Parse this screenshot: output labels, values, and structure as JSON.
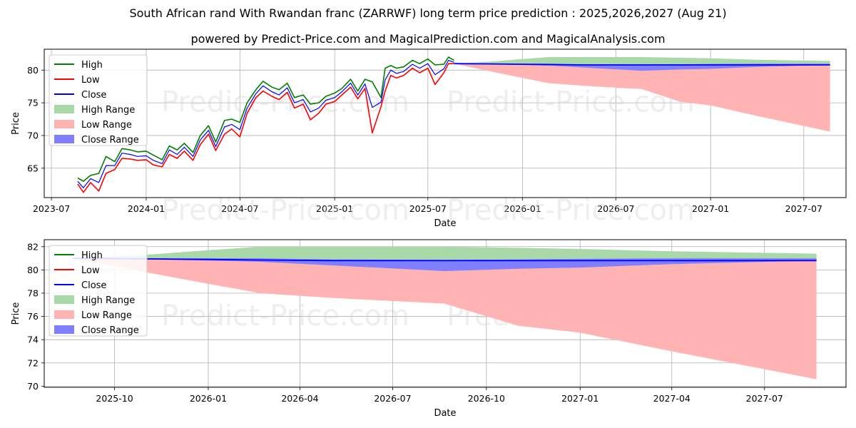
{
  "title": "South African rand With Rwandan franc (ZARRWF) long term price prediction : 2025,2026,2027 (Aug 21)",
  "subtitle": "powered by Predict-Price.com and MagicalPrediction.com and MagicalAnalysis.com",
  "watermark": "Predict-Price.com",
  "colors": {
    "high": "#008000",
    "low": "#ff0000",
    "close": "#0000ff",
    "high_range": "#a9d8a9",
    "low_range": "#ffb3b3",
    "close_range": "#7f7fff",
    "grid": "#b0b0b0"
  },
  "chart_data": [
    {
      "type": "line",
      "panel": "history-and-forecast",
      "xlabel": "Date",
      "ylabel": "Price",
      "xlim": [
        "2023-06-17",
        "2027-09-21"
      ],
      "ylim": [
        60.5,
        83.2
      ],
      "x_ticks": [
        "2023-07",
        "2024-01",
        "2024-07",
        "2025-01",
        "2025-07",
        "2026-01",
        "2026-07",
        "2027-01",
        "2027-07"
      ],
      "y_ticks": [
        65,
        70,
        75,
        80
      ],
      "grid": true,
      "legend": "top-left",
      "legend_entries": [
        "High",
        "Low",
        "Close",
        "High Range",
        "Low Range",
        "Close Range"
      ],
      "history": {
        "x": [
          "2023-08-21",
          "2023-09-01",
          "2023-09-15",
          "2023-10-01",
          "2023-10-15",
          "2023-11-01",
          "2023-11-15",
          "2023-12-01",
          "2023-12-15",
          "2024-01-01",
          "2024-01-15",
          "2024-02-01",
          "2024-02-15",
          "2024-03-01",
          "2024-03-15",
          "2024-04-01",
          "2024-04-15",
          "2024-05-01",
          "2024-05-15",
          "2024-06-01",
          "2024-06-15",
          "2024-07-01",
          "2024-07-15",
          "2024-08-01",
          "2024-08-15",
          "2024-09-01",
          "2024-09-15",
          "2024-10-01",
          "2024-10-15",
          "2024-11-01",
          "2024-11-15",
          "2024-12-01",
          "2024-12-15",
          "2025-01-01",
          "2025-01-15",
          "2025-02-01",
          "2025-02-15",
          "2025-03-01",
          "2025-03-15",
          "2025-04-01",
          "2025-04-09",
          "2025-04-20",
          "2025-05-01",
          "2025-05-15",
          "2025-06-01",
          "2025-06-15",
          "2025-07-01",
          "2025-07-15",
          "2025-08-01",
          "2025-08-10",
          "2025-08-21"
        ],
        "high": [
          63.5,
          63.0,
          63.9,
          64.2,
          66.8,
          66.0,
          68.0,
          67.8,
          67.5,
          67.6,
          67.0,
          66.3,
          68.4,
          67.8,
          68.8,
          67.4,
          70.0,
          71.5,
          69.0,
          72.3,
          72.5,
          72.0,
          75.0,
          77.0,
          78.3,
          77.4,
          77.0,
          78.0,
          75.8,
          76.2,
          74.8,
          75.0,
          76.0,
          76.5,
          77.2,
          78.6,
          76.8,
          78.6,
          78.2,
          75.8,
          80.3,
          80.7,
          80.3,
          80.5,
          81.5,
          81.0,
          81.7,
          80.8,
          80.9,
          82.0,
          81.5
        ],
        "low": [
          62.6,
          61.3,
          62.8,
          61.5,
          64.2,
          64.8,
          66.5,
          66.4,
          66.2,
          66.3,
          65.5,
          65.2,
          67.1,
          66.5,
          67.6,
          66.2,
          68.6,
          70.2,
          67.7,
          70.2,
          71.0,
          69.8,
          73.4,
          75.8,
          76.8,
          76.0,
          75.5,
          76.6,
          74.2,
          74.8,
          72.4,
          73.4,
          74.8,
          75.2,
          76.2,
          77.4,
          75.6,
          77.2,
          70.4,
          74.4,
          76.8,
          79.2,
          78.8,
          79.2,
          80.3,
          79.6,
          80.3,
          77.8,
          79.6,
          81.0,
          81.0
        ],
        "close": [
          63.0,
          62.0,
          63.4,
          62.8,
          65.4,
          65.4,
          67.3,
          67.1,
          66.8,
          66.9,
          66.2,
          65.7,
          67.8,
          67.1,
          68.2,
          66.8,
          69.3,
          70.8,
          68.3,
          71.3,
          71.7,
          70.9,
          74.2,
          76.4,
          77.6,
          76.7,
          76.2,
          77.3,
          75.0,
          75.5,
          73.6,
          74.2,
          75.4,
          75.8,
          76.7,
          78.0,
          76.2,
          77.9,
          74.3,
          75.1,
          78.5,
          80.0,
          79.5,
          79.8,
          80.9,
          80.3,
          81.0,
          79.3,
          80.2,
          81.5,
          81.2
        ]
      },
      "forecast": {
        "x": [
          "2025-08-21",
          "2025-11-01",
          "2026-01-01",
          "2026-02-21",
          "2026-05-01",
          "2026-08-21",
          "2026-11-01",
          "2027-01-01",
          "2027-04-01",
          "2027-08-21"
        ],
        "high": [
          81.0,
          81.3,
          81.7,
          82.0,
          82.0,
          82.0,
          81.9,
          81.8,
          81.6,
          81.4
        ],
        "low": [
          81.0,
          79.8,
          78.8,
          78.0,
          77.6,
          77.1,
          75.2,
          74.6,
          73.0,
          70.6
        ],
        "close": [
          81.0,
          80.95,
          80.9,
          80.85,
          80.8,
          80.8,
          80.8,
          80.8,
          80.8,
          80.8
        ],
        "close_upper": [
          81.0,
          81.0,
          81.0,
          81.0,
          80.9,
          80.85,
          80.9,
          80.95,
          81.0,
          81.0
        ],
        "close_lower": [
          81.0,
          80.9,
          80.8,
          80.7,
          80.4,
          79.9,
          80.1,
          80.2,
          80.5,
          80.8
        ]
      }
    },
    {
      "type": "line",
      "panel": "forecast-zoom",
      "xlabel": "Date",
      "ylabel": "Price",
      "xlim": [
        "2025-07-24",
        "2027-09-19"
      ],
      "ylim": [
        69.9,
        82.6
      ],
      "x_ticks": [
        "2025-10",
        "2026-01",
        "2026-04",
        "2026-07",
        "2026-10",
        "2027-01",
        "2027-04",
        "2027-07"
      ],
      "y_ticks": [
        70,
        72,
        74,
        76,
        78,
        80,
        82
      ],
      "grid": true,
      "legend": "top-left",
      "legend_entries": [
        "High",
        "Low",
        "Close",
        "High Range",
        "Low Range",
        "Close Range"
      ],
      "forecast": {
        "x": [
          "2025-08-21",
          "2025-11-01",
          "2026-01-01",
          "2026-02-21",
          "2026-05-01",
          "2026-08-21",
          "2026-11-01",
          "2027-01-01",
          "2027-04-01",
          "2027-08-21"
        ],
        "high": [
          81.0,
          81.3,
          81.7,
          82.0,
          82.0,
          82.0,
          81.9,
          81.8,
          81.6,
          81.4
        ],
        "low": [
          81.0,
          79.8,
          78.8,
          78.0,
          77.6,
          77.1,
          75.2,
          74.6,
          73.0,
          70.6
        ],
        "close": [
          81.0,
          80.95,
          80.9,
          80.85,
          80.8,
          80.8,
          80.8,
          80.8,
          80.8,
          80.8
        ],
        "close_upper": [
          81.0,
          81.0,
          81.0,
          81.0,
          80.9,
          80.85,
          80.9,
          80.95,
          81.0,
          81.0
        ],
        "close_lower": [
          81.0,
          80.9,
          80.8,
          80.7,
          80.4,
          79.9,
          80.1,
          80.2,
          80.5,
          80.8
        ]
      }
    }
  ]
}
